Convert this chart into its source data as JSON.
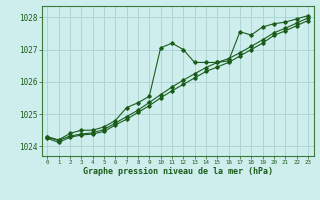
{
  "title": "Graphe pression niveau de la mer (hPa)",
  "background_color": "#ceeeed",
  "grid_color": "#aed4d3",
  "line_color": "#1a5c1a",
  "marker_color": "#1a5c1a",
  "spine_color": "#3a7a3a",
  "xlim": [
    -0.5,
    23.5
  ],
  "ylim": [
    1023.7,
    1028.35
  ],
  "yticks": [
    1024,
    1025,
    1026,
    1027,
    1028
  ],
  "xticks": [
    0,
    1,
    2,
    3,
    4,
    5,
    6,
    7,
    8,
    9,
    10,
    11,
    12,
    13,
    14,
    15,
    16,
    17,
    18,
    19,
    20,
    21,
    22,
    23
  ],
  "series": [
    {
      "x": [
        0,
        1,
        2,
        3,
        4,
        5,
        6,
        7,
        8,
        9,
        10,
        11,
        12,
        13,
        14,
        15,
        16,
        17,
        18,
        19,
        20,
        21,
        22,
        23
      ],
      "y": [
        1024.3,
        1024.2,
        1024.4,
        1024.5,
        1024.5,
        1024.6,
        1024.8,
        1025.2,
        1025.35,
        1025.55,
        1027.05,
        1027.2,
        1027.0,
        1026.6,
        1026.6,
        1026.6,
        1026.65,
        1027.55,
        1027.45,
        1027.7,
        1027.8,
        1027.85,
        1027.95,
        1028.05
      ]
    },
    {
      "x": [
        0,
        1,
        2,
        3,
        4,
        5,
        6,
        7,
        8,
        9,
        10,
        11,
        12,
        13,
        14,
        15,
        16,
        17,
        18,
        19,
        20,
        21,
        22,
        23
      ],
      "y": [
        1024.28,
        1024.18,
        1024.32,
        1024.38,
        1024.42,
        1024.52,
        1024.72,
        1024.92,
        1025.12,
        1025.36,
        1025.6,
        1025.84,
        1026.05,
        1026.25,
        1026.44,
        1026.6,
        1026.72,
        1026.9,
        1027.1,
        1027.3,
        1027.52,
        1027.66,
        1027.82,
        1027.98
      ]
    },
    {
      "x": [
        0,
        1,
        2,
        3,
        4,
        5,
        6,
        7,
        8,
        9,
        10,
        11,
        12,
        13,
        14,
        15,
        16,
        17,
        18,
        19,
        20,
        21,
        22,
        23
      ],
      "y": [
        1024.25,
        1024.12,
        1024.28,
        1024.35,
        1024.38,
        1024.46,
        1024.66,
        1024.84,
        1025.05,
        1025.26,
        1025.5,
        1025.72,
        1025.92,
        1026.12,
        1026.32,
        1026.46,
        1026.6,
        1026.8,
        1027.0,
        1027.2,
        1027.44,
        1027.58,
        1027.74,
        1027.9
      ]
    }
  ]
}
